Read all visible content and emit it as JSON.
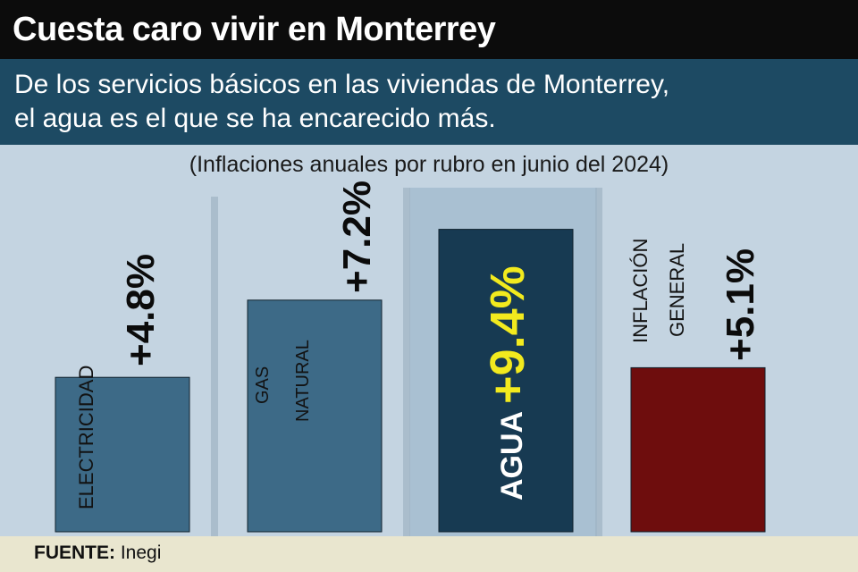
{
  "title": "Cuesta caro vivir en Monterrey",
  "subtitle_lines": [
    "De los servicios básicos en las viviendas de Monterrey,",
    "el agua es el que se ha encarecido más."
  ],
  "note": "(Inflaciones anuales por rubro en junio del 2024)",
  "source_label": "FUENTE:",
  "source_value": "Inegi",
  "colors": {
    "bar_default": "#3d6a87",
    "bar_highlight": "#173a52",
    "bar_general": "#6e0d0d",
    "highlight_text": "#f2ea1e",
    "panel": "#c4d4e1",
    "panel_highlight": "#a9c0d2"
  },
  "chart_data": {
    "type": "bar",
    "title": "Cuesta caro vivir en Monterrey",
    "ylabel": "",
    "unit": "%",
    "ylim": [
      0,
      10
    ],
    "grid": false,
    "legend": "none",
    "categories": [
      "ELECTRICIDAD",
      "GAS NATURAL",
      "AGUA",
      "INFLACIÓN GENERAL"
    ],
    "category_label_lines": [
      [
        "ELECTRICIDAD"
      ],
      [
        "GAS",
        "NATURAL"
      ],
      [
        "AGUA"
      ],
      [
        "INFLACIÓN",
        "GENERAL"
      ]
    ],
    "values": [
      4.8,
      7.2,
      9.4,
      5.1
    ],
    "value_labels": [
      "+4.8%",
      "+7.2%",
      "+9.4%",
      "+5.1%"
    ],
    "highlight": "AGUA"
  }
}
